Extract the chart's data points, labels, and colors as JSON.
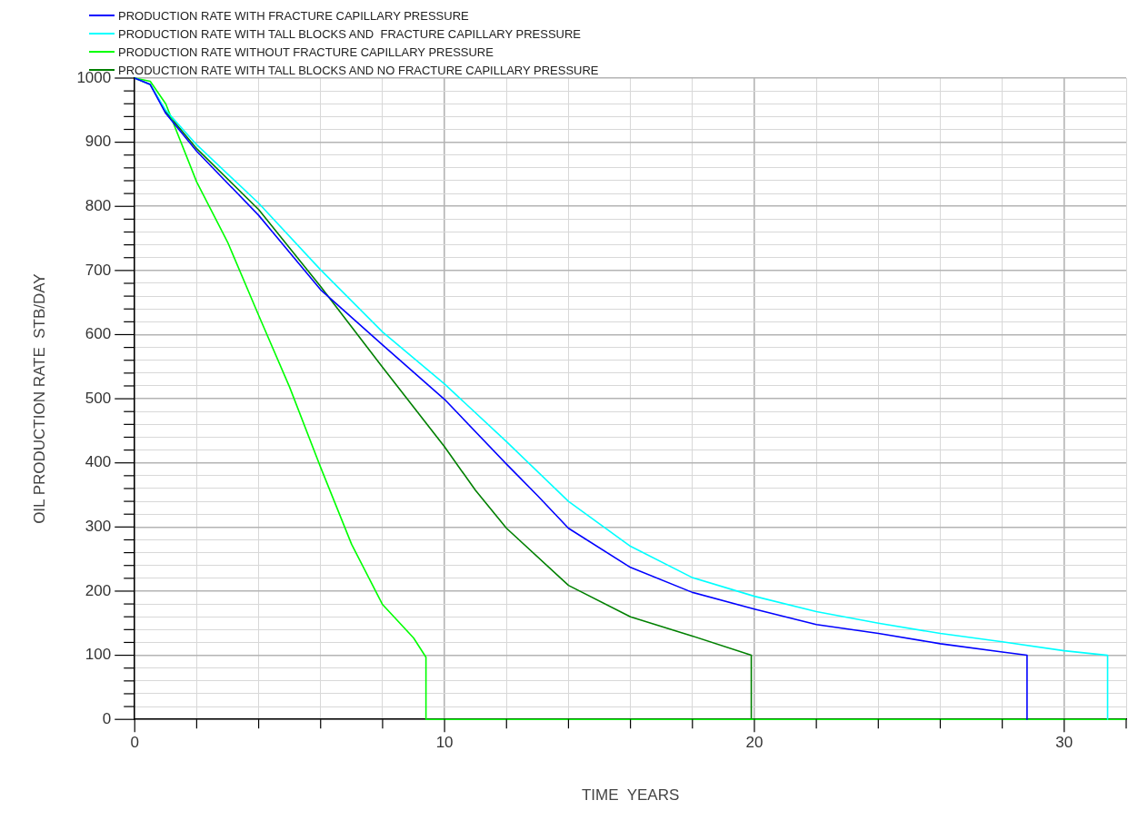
{
  "chart_data": {
    "type": "line",
    "xlabel": "TIME  YEARS",
    "ylabel": "OIL PRODUCTION RATE  STB/DAY",
    "xlim": [
      0,
      32
    ],
    "ylim": [
      0,
      1000
    ],
    "xticks": [
      0,
      {
        "value": 2,
        "label": null
      },
      {
        "value": 4,
        "label": null
      },
      {
        "value": 6,
        "label": null
      },
      {
        "value": 8,
        "label": null
      },
      10,
      {
        "value": 12,
        "label": null
      },
      {
        "value": 14,
        "label": null
      },
      {
        "value": 16,
        "label": null
      },
      {
        "value": 18,
        "label": null
      },
      20,
      {
        "value": 22,
        "label": null
      },
      {
        "value": 24,
        "label": null
      },
      {
        "value": 26,
        "label": null
      },
      {
        "value": 28,
        "label": null
      },
      30,
      {
        "value": 32,
        "label": null
      }
    ],
    "yticks": [
      0,
      {
        "value": 20,
        "label": null
      },
      {
        "value": 40,
        "label": null
      },
      {
        "value": 60,
        "label": null
      },
      {
        "value": 80,
        "label": null
      },
      100,
      {
        "value": 120,
        "label": null
      },
      {
        "value": 140,
        "label": null
      },
      {
        "value": 160,
        "label": null
      },
      {
        "value": 180,
        "label": null
      },
      200,
      {
        "value": 220,
        "label": null
      },
      {
        "value": 240,
        "label": null
      },
      {
        "value": 260,
        "label": null
      },
      {
        "value": 280,
        "label": null
      },
      300,
      {
        "value": 320,
        "label": null
      },
      {
        "value": 340,
        "label": null
      },
      {
        "value": 360,
        "label": null
      },
      {
        "value": 380,
        "label": null
      },
      400,
      {
        "value": 420,
        "label": null
      },
      {
        "value": 440,
        "label": null
      },
      {
        "value": 460,
        "label": null
      },
      {
        "value": 480,
        "label": null
      },
      500,
      {
        "value": 520,
        "label": null
      },
      {
        "value": 540,
        "label": null
      },
      {
        "value": 560,
        "label": null
      },
      {
        "value": 580,
        "label": null
      },
      600,
      {
        "value": 620,
        "label": null
      },
      {
        "value": 640,
        "label": null
      },
      {
        "value": 660,
        "label": null
      },
      {
        "value": 680,
        "label": null
      },
      700,
      {
        "value": 720,
        "label": null
      },
      {
        "value": 740,
        "label": null
      },
      {
        "value": 760,
        "label": null
      },
      {
        "value": 780,
        "label": null
      },
      800,
      {
        "value": 820,
        "label": null
      },
      {
        "value": 840,
        "label": null
      },
      {
        "value": 860,
        "label": null
      },
      {
        "value": 880,
        "label": null
      },
      900,
      {
        "value": 920,
        "label": null
      },
      {
        "value": 940,
        "label": null
      },
      {
        "value": 960,
        "label": null
      },
      {
        "value": 980,
        "label": null
      },
      1000
    ],
    "grid": true,
    "legend": "top left",
    "marker": "none",
    "line_style": "solid",
    "series": [
      {
        "name": "PRODUCTION RATE WITH FRACTURE CAPILLARY PRESSURE",
        "color": "#0000ff",
        "x": [
          0,
          0.5,
          1,
          2,
          4,
          6,
          8,
          10,
          12,
          13,
          14,
          16,
          18,
          20,
          22,
          24,
          26,
          28,
          28.8,
          28.8
        ],
        "values": [
          1000,
          990,
          945,
          886,
          786,
          670,
          584,
          499,
          398,
          349,
          298,
          237,
          198,
          172,
          148,
          134,
          118,
          105,
          100,
          0
        ]
      },
      {
        "name": "PRODUCTION RATE WITH TALL BLOCKS AND  FRACTURE CAPILLARY PRESSURE",
        "color": "#00ffff",
        "x": [
          0,
          0.5,
          1,
          2,
          4,
          6,
          8,
          10,
          12,
          14,
          16,
          18,
          20,
          22,
          24,
          26,
          28,
          30,
          31.4,
          31.4
        ],
        "values": [
          1000,
          990,
          950,
          896,
          805,
          701,
          604,
          523,
          433,
          340,
          270,
          221,
          192,
          168,
          150,
          134,
          121,
          107,
          100,
          0
        ]
      },
      {
        "name": "PRODUCTION RATE WITHOUT FRACTURE CAPILLARY PRESSURE",
        "color": "#00ff00",
        "x": [
          0,
          0.5,
          1,
          2,
          3,
          4,
          5,
          6,
          7,
          8,
          9,
          9.4,
          9.4,
          32
        ],
        "values": [
          1000,
          995,
          960,
          838,
          744,
          630,
          518,
          393,
          273,
          179,
          127,
          97,
          0,
          0
        ]
      },
      {
        "name": "PRODUCTION RATE WITH TALL BLOCKS AND NO FRACTURE CAPILLARY PRESSURE",
        "color": "#008000",
        "x": [
          0,
          0.5,
          1,
          2,
          4,
          6,
          8,
          10,
          11,
          12,
          14,
          16,
          18,
          19.9,
          19.9
        ],
        "values": [
          1000,
          990,
          948,
          890,
          795,
          675,
          549,
          425,
          357,
          298,
          209,
          160,
          130,
          100,
          0
        ]
      }
    ]
  }
}
